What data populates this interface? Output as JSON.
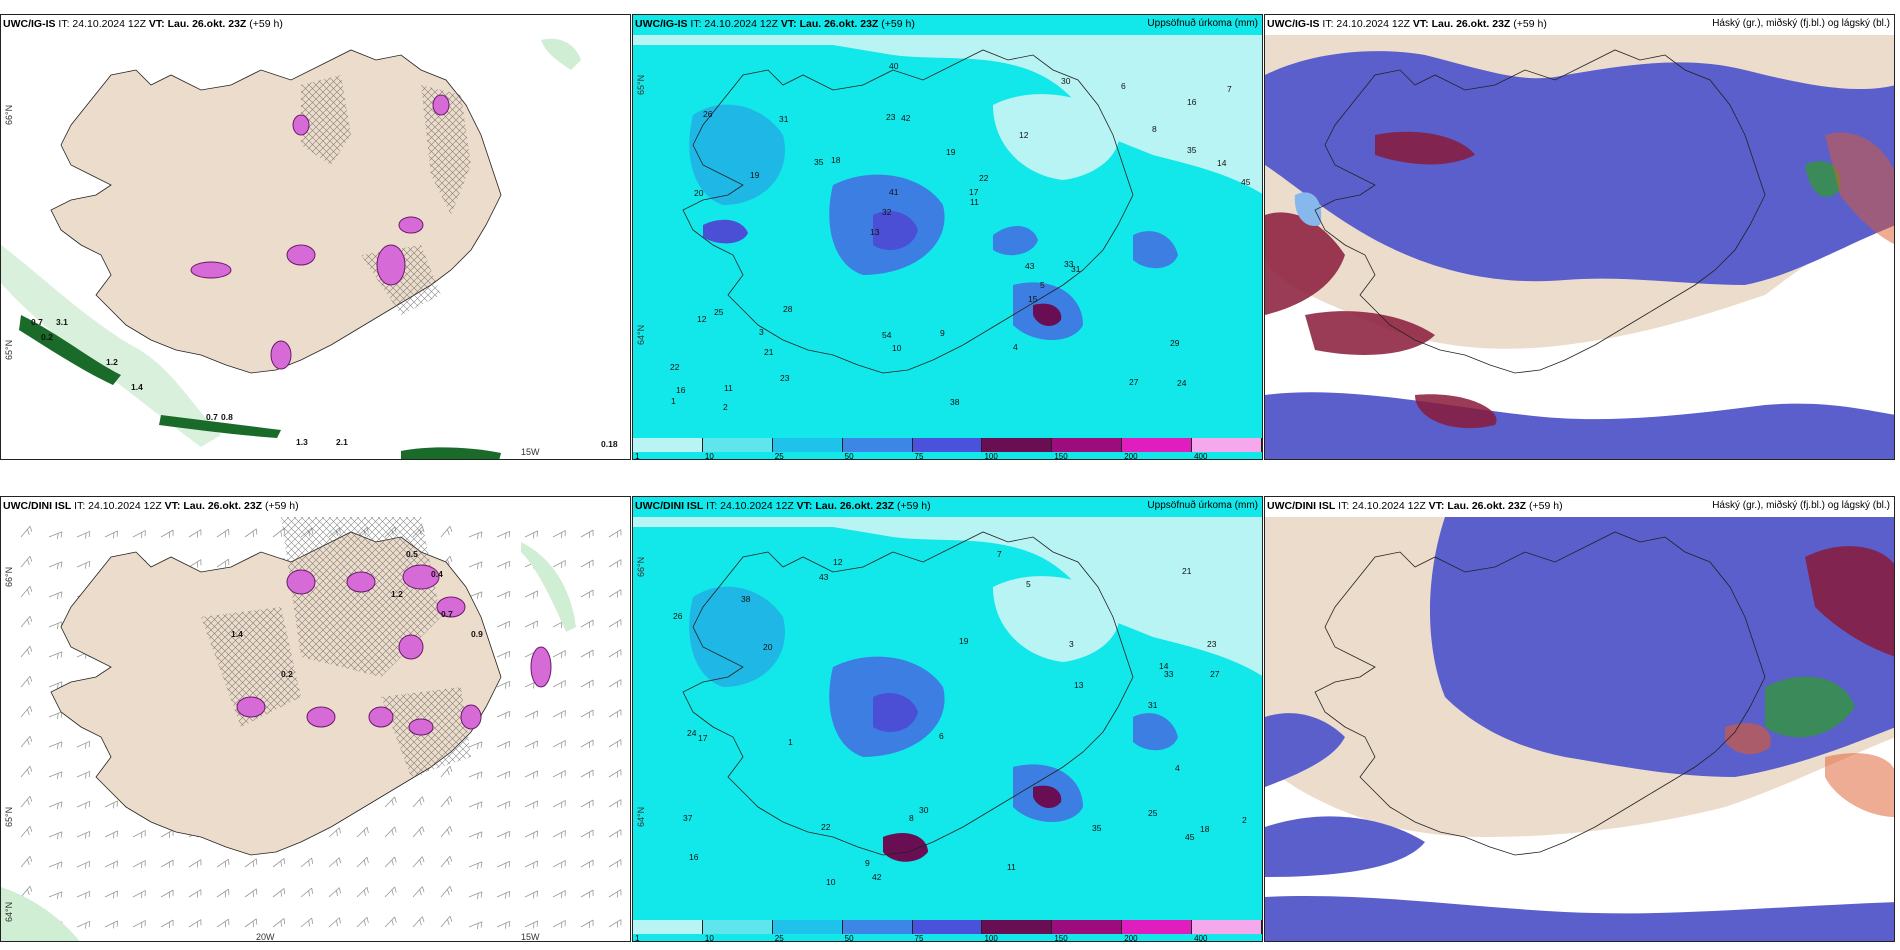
{
  "panels": [
    {
      "model": "UWC/IG-IS",
      "it": " IT: 24.10.2024 12Z ",
      "vt": "VT: Lau. 26.okt. 23Z",
      "lead": " (+59 h)",
      "right": ""
    },
    {
      "model": "UWC/IG-IS",
      "it": " IT: 24.10.2024 12Z ",
      "vt": "VT: Lau. 26.okt. 23Z",
      "lead": " (+59 h)",
      "right": "Uppsöfnuð úrkoma (mm)"
    },
    {
      "model": "UWC/IG-IS",
      "it": " IT: 24.10.2024 12Z ",
      "vt": "VT: Lau. 26.okt. 23Z",
      "lead": " (+59 h)",
      "right": "Háský (gr.), miðský (fj.bl.) og lágský (bl.)"
    },
    {
      "model": "UWC/DINI ISL",
      "it": " IT: 24.10.2024 12Z ",
      "vt": "VT: Lau. 26.okt. 23Z",
      "lead": " (+59 h)",
      "right": ""
    },
    {
      "model": "UWC/DINI ISL",
      "it": " IT: 24.10.2024 12Z ",
      "vt": "VT: Lau. 26.okt. 23Z",
      "lead": " (+59 h)",
      "right": "Uppsöfnuð úrkoma (mm)"
    },
    {
      "model": "UWC/DINI ISL",
      "it": " IT: 24.10.2024 12Z ",
      "vt": "VT: Lau. 26.okt. 23Z",
      "lead": " (+59 h)",
      "right": "Háský (gr.), miðský (fj.bl.) og lágský (bl.)"
    }
  ],
  "coords": {
    "n66": "66°N",
    "n65": "65°N",
    "n64": "64°N",
    "w15": "15W",
    "w20": "20W"
  },
  "colorbar": {
    "ticks": [
      "1",
      "10",
      "25",
      "50",
      "75",
      "100",
      "150",
      "200",
      "400"
    ],
    "colors": [
      "#b9f4f4",
      "#5fe6ec",
      "#1fc2ea",
      "#3d86e6",
      "#4a52dc",
      "#6a0e54",
      "#9c0c7c",
      "#e01ec0",
      "#f6a8ec"
    ]
  },
  "labels": {
    "top_wind": [
      "0.7",
      "3.1",
      "0.7",
      "0.8",
      "1.2",
      "1.4",
      "0.2",
      "1.3",
      "2.1",
      "0.18"
    ],
    "top_precip": [
      "24",
      "20",
      "16",
      "13",
      "12",
      "11",
      "23",
      "19",
      "25",
      "18",
      "22",
      "21",
      "42",
      "22",
      "31",
      "26",
      "40",
      "45",
      "43",
      "35",
      "32",
      "54",
      "41",
      "31",
      "30",
      "28",
      "27",
      "29",
      "33",
      "38",
      "35",
      "19",
      "15",
      "23",
      "14",
      "17",
      "16",
      "10",
      "11",
      "12",
      "8",
      "7",
      "5",
      "4",
      "3",
      "2",
      "1",
      "9",
      "6"
    ],
    "bottom_wind": [
      "0.5",
      "0.4",
      "0.7",
      "0.9",
      "1.2",
      "1.4",
      "0.2"
    ],
    "bottom_precip": [
      "25",
      "23",
      "18",
      "19",
      "16",
      "12",
      "14",
      "22",
      "21",
      "20",
      "27",
      "26",
      "31",
      "42",
      "37",
      "38",
      "45",
      "43",
      "30",
      "33",
      "24",
      "17",
      "11",
      "13",
      "9",
      "8",
      "7",
      "5",
      "3",
      "2",
      "1",
      "35",
      "10",
      "6",
      "4"
    ]
  },
  "colors": {
    "land": "#ecdccb",
    "ocean": "#ffffff",
    "precip_light": "#b9f4f4",
    "precip_base": "#12e8ea",
    "precip_mid": "#1fb7e6",
    "precip_blue": "#3d7ee2",
    "precip_dark": "#4a4fd6",
    "precip_max": "#6a0e54",
    "cloud_high": "#5a5fcc",
    "cloud_low": "#86b8ee",
    "cloud_mid": "#8a1a3a",
    "cloud_orange": "#e05a2a",
    "cloud_green": "#3a8a5a",
    "wind_green": "#2a9a4a",
    "pink": "#d66ad6"
  }
}
